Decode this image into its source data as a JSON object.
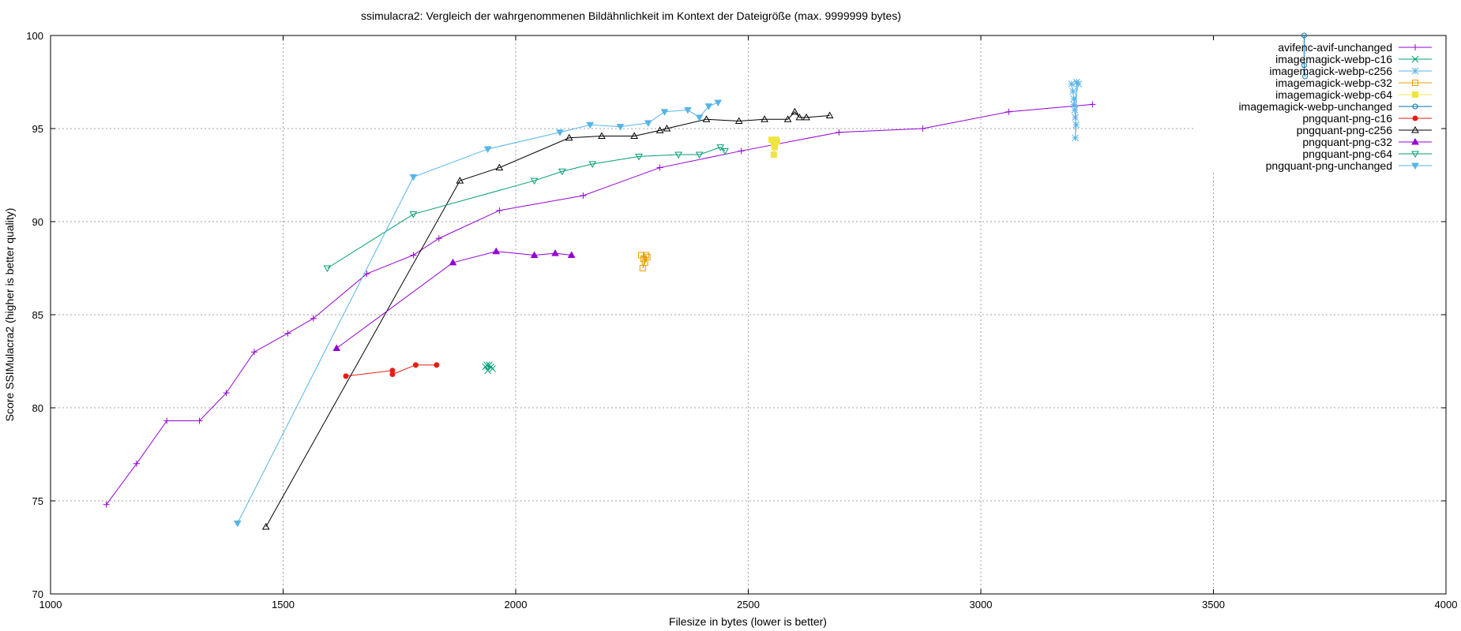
{
  "chart_data": {
    "type": "line",
    "title": "ssimulacra2: Vergleich der wahrgenommenen Bildähnlichkeit im Kontext der Dateigröße (max. 9999999 bytes)",
    "xlabel": "Filesize in bytes (lower is better)",
    "ylabel": "Score SSIMulacra2 (higher is better quality)",
    "xlim": [
      1000,
      4000
    ],
    "ylim": [
      70,
      100
    ],
    "xticks": [
      1000,
      1500,
      2000,
      2500,
      3000,
      3500,
      4000
    ],
    "yticks": [
      70,
      75,
      80,
      85,
      90,
      95,
      100
    ],
    "grid": true,
    "legend_position": "top-right",
    "series": [
      {
        "name": "avifenc-avif-unchanged",
        "color": "#9400d3",
        "marker": "plus",
        "points": [
          [
            1120,
            74.8
          ],
          [
            1185,
            77.0
          ],
          [
            1250,
            79.3
          ],
          [
            1320,
            79.3
          ],
          [
            1378,
            80.8
          ],
          [
            1438,
            83.0
          ],
          [
            1510,
            84.0
          ],
          [
            1565,
            84.8
          ],
          [
            1680,
            87.2
          ],
          [
            1780,
            88.2
          ],
          [
            1835,
            89.1
          ],
          [
            1965,
            90.6
          ],
          [
            2145,
            91.4
          ],
          [
            2310,
            92.9
          ],
          [
            2485,
            93.8
          ],
          [
            2695,
            94.8
          ],
          [
            2875,
            95.0
          ],
          [
            3060,
            95.9
          ],
          [
            3240,
            96.3
          ]
        ]
      },
      {
        "name": "imagemagick-webp-c16",
        "color": "#009e73",
        "marker": "x",
        "points": [
          [
            1935,
            82.2
          ],
          [
            1940,
            82.0
          ],
          [
            1943,
            82.3
          ],
          [
            1947,
            82.2
          ],
          [
            1950,
            82.1
          ],
          [
            1938,
            82.3
          ]
        ]
      },
      {
        "name": "imagemagick-webp-c256",
        "color": "#56b4e9",
        "marker": "star",
        "points": [
          [
            3195,
            97.4
          ],
          [
            3198,
            97.0
          ],
          [
            3200,
            96.6
          ],
          [
            3202,
            96.0
          ],
          [
            3203,
            95.6
          ],
          [
            3205,
            95.2
          ],
          [
            3203,
            94.5
          ],
          [
            3206,
            97.5
          ],
          [
            3210,
            97.4
          ],
          [
            3200,
            96.3
          ]
        ]
      },
      {
        "name": "imagemagick-webp-c32",
        "color": "#e69f00",
        "marker": "square-open",
        "points": [
          [
            2270,
            88.2
          ],
          [
            2275,
            88.0
          ],
          [
            2278,
            87.8
          ],
          [
            2280,
            88.2
          ],
          [
            2273,
            87.5
          ],
          [
            2283,
            88.1
          ]
        ]
      },
      {
        "name": "imagemagick-webp-c64",
        "color": "#f0e442",
        "marker": "square-filled",
        "points": [
          [
            2550,
            94.4
          ],
          [
            2555,
            94.2
          ],
          [
            2557,
            94.0
          ],
          [
            2560,
            94.4
          ],
          [
            2555,
            93.6
          ],
          [
            2562,
            94.3
          ]
        ]
      },
      {
        "name": "imagemagick-webp-unchanged",
        "color": "#0072b2",
        "marker": "circle-open",
        "points": [
          [
            3695,
            100.0
          ],
          [
            3695,
            98.4
          ],
          [
            3697,
            97.8
          ]
        ]
      },
      {
        "name": "pngquant-png-c16",
        "color": "#e51e10",
        "marker": "circle-filled",
        "points": [
          [
            1635,
            81.7
          ],
          [
            1735,
            82.0
          ],
          [
            1735,
            81.8
          ],
          [
            1785,
            82.3
          ],
          [
            1830,
            82.3
          ]
        ]
      },
      {
        "name": "pngquant-png-c256",
        "color": "#000000",
        "marker": "triangle-open",
        "points": [
          [
            1463,
            73.6
          ],
          [
            1880,
            92.2
          ],
          [
            1965,
            92.9
          ],
          [
            2115,
            94.5
          ],
          [
            2185,
            94.6
          ],
          [
            2255,
            94.6
          ],
          [
            2310,
            94.9
          ],
          [
            2325,
            95.0
          ],
          [
            2410,
            95.5
          ],
          [
            2480,
            95.4
          ],
          [
            2535,
            95.5
          ],
          [
            2585,
            95.5
          ],
          [
            2600,
            95.9
          ],
          [
            2610,
            95.6
          ],
          [
            2625,
            95.6
          ],
          [
            2675,
            95.7
          ]
        ]
      },
      {
        "name": "pngquant-png-c32",
        "color": "#9400d3",
        "marker": "triangle-filled",
        "points": [
          [
            1615,
            83.2
          ],
          [
            1865,
            87.8
          ],
          [
            1958,
            88.4
          ],
          [
            2040,
            88.2
          ],
          [
            2085,
            88.3
          ],
          [
            2120,
            88.2
          ]
        ]
      },
      {
        "name": "pngquant-png-c64",
        "color": "#009e73",
        "marker": "triangle-down-open",
        "points": [
          [
            1595,
            87.5
          ],
          [
            1780,
            90.4
          ],
          [
            2040,
            92.2
          ],
          [
            2100,
            92.7
          ],
          [
            2165,
            93.1
          ],
          [
            2265,
            93.5
          ],
          [
            2350,
            93.6
          ],
          [
            2395,
            93.6
          ],
          [
            2440,
            94.0
          ],
          [
            2450,
            93.8
          ]
        ]
      },
      {
        "name": "pngquant-png-unchanged",
        "color": "#56b4e9",
        "marker": "triangle-down-filled",
        "points": [
          [
            1402,
            73.8
          ],
          [
            1780,
            92.4
          ],
          [
            1940,
            93.9
          ],
          [
            2095,
            94.8
          ],
          [
            2160,
            95.2
          ],
          [
            2225,
            95.1
          ],
          [
            2285,
            95.3
          ],
          [
            2320,
            95.9
          ],
          [
            2370,
            96.0
          ],
          [
            2395,
            95.6
          ],
          [
            2415,
            96.2
          ],
          [
            2435,
            96.4
          ]
        ]
      }
    ]
  }
}
